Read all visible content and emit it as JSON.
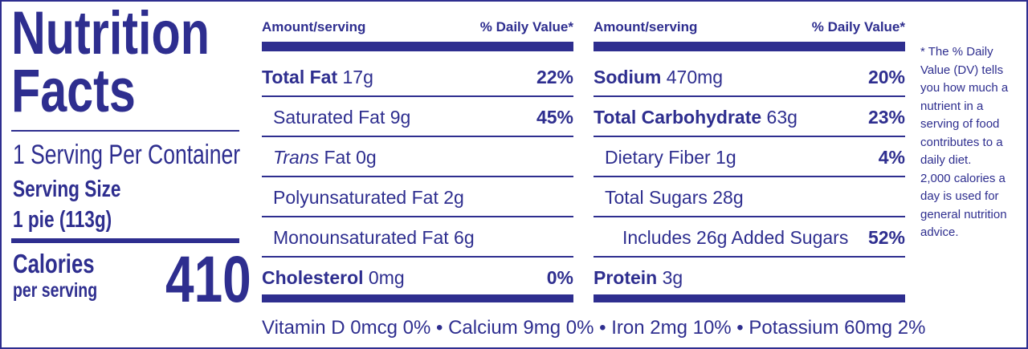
{
  "panel": {
    "title_line1": "Nutrition",
    "title_line2": "Facts",
    "servings": "1 Serving Per Container",
    "serving_size_label": "Serving Size",
    "serving_size": "1 pie (113g)",
    "calories_label": "Calories",
    "calories_sub": "per serving",
    "calories": 410
  },
  "left_table": {
    "header_amount": "Amount/serving",
    "header_dv": "% Daily Value*",
    "rows": [
      {
        "name": "Total Fat",
        "amount": "17g",
        "dv": "22%"
      },
      {
        "name": "Saturated Fat",
        "amount": "9g",
        "dv": "45%"
      },
      {
        "name_italic": "Trans",
        "name": "Fat",
        "amount": "0g"
      },
      {
        "name": "Polyunsaturated Fat",
        "amount": "2g"
      },
      {
        "name": "Monounsaturated Fat",
        "amount": "6g"
      },
      {
        "name": "Cholesterol",
        "amount": "0mg",
        "dv": "0%"
      }
    ]
  },
  "right_table": {
    "header_amount": "Amount/serving",
    "header_dv": "% Daily Value*",
    "rows": [
      {
        "name": "Sodium",
        "amount": "470mg",
        "dv": "20%"
      },
      {
        "name": "Total Carbohydrate",
        "amount": "63g",
        "dv": "23%"
      },
      {
        "name": "Dietary Fiber",
        "amount": "1g",
        "dv": "4%"
      },
      {
        "name": "Total Sugars",
        "amount": "28g"
      },
      {
        "name": "Includes 26g Added Sugars",
        "dv": "52%"
      },
      {
        "name": "Protein",
        "amount": "3g"
      }
    ]
  },
  "footnote": [
    "* The % Daily Value (DV) tells you how much a nutrient in a serving of food contributes to a daily diet.",
    "2,000 calories a day is used for general nutrition advice."
  ],
  "vitamins": [
    "Vitamin D 0mcg 0%",
    "Calcium 9mg 0%",
    "Iron 2mg 10%",
    "Potassium 60mg 2%"
  ]
}
